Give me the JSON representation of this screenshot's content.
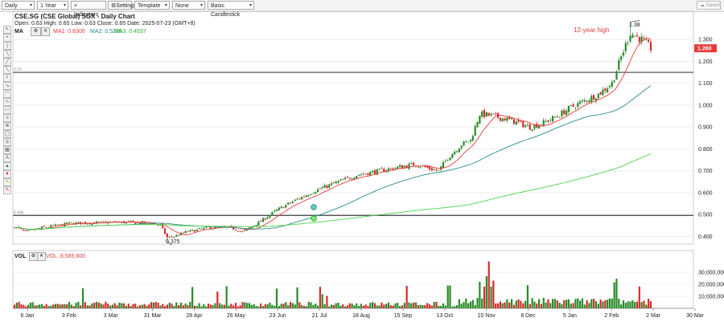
{
  "toolbar": {
    "period": "Daily",
    "range": "1 Year",
    "indicators": "Indicators",
    "settings": "Settings",
    "template": "Template",
    "overlay": "None",
    "style": "Basic Candlestick",
    "saved": "Saved"
  },
  "header": {
    "title": "CSE.SG (CSE Global) SGX - Daily Chart",
    "ohlc": "Open: 0.63   High: 0.65   Low: 0.63   Close: 0.65   Date: 2025-07-23 (GMT+8)",
    "ma_label": "MA",
    "ma1": "MA1: 0.6300",
    "ma2": "MA2: 0.5230",
    "ma3": "MA3: 0.4537",
    "vol_label": "VOL",
    "vol_value": "VOL: 8,585,600"
  },
  "colors": {
    "up": "#2a8a2a",
    "down": "#d62b2b",
    "ma1": "#e83a3a",
    "ma2": "#2a8a8a",
    "ma3": "#4ad64a"
  },
  "chart_data": {
    "type": "candlestick",
    "title": "CSE.SG (CSE Global) SGX - Daily Chart",
    "price_ticks": [
      "1.300",
      "1.200",
      "1.100",
      "1.000",
      "0.900",
      "0.800",
      "0.700",
      "0.600",
      "0.500",
      "0.400"
    ],
    "price_range": [
      0.365,
      1.4
    ],
    "last_price": "1.260",
    "hlines": [
      {
        "label": "1.15",
        "value": 1.15
      },
      {
        "label": "0.496",
        "value": 0.496
      }
    ],
    "annotations": {
      "high_text": "1.38",
      "low_text": "0.375",
      "twelve_year": "12-year high"
    },
    "volume_ticks": [
      "30,000,000",
      "20,000,000",
      "10,000,000"
    ],
    "volume_max": 40000000,
    "x_ticks": [
      "6 Jan",
      "3 Feb",
      "3 Mar",
      "31 Mar",
      "28 Apr",
      "26 May",
      "23 Jun",
      "21 Jul",
      "18 Aug",
      "15 Sep",
      "13 Oct",
      "10 Nov",
      "8 Dec",
      "5 Jan",
      "2 Feb",
      "2 Mar",
      "30 Mar"
    ],
    "close_anchors": [
      [
        0,
        0.445
      ],
      [
        5,
        0.42
      ],
      [
        12,
        0.44
      ],
      [
        25,
        0.46
      ],
      [
        45,
        0.465
      ],
      [
        60,
        0.462
      ],
      [
        64,
        0.45
      ],
      [
        67,
        0.395
      ],
      [
        70,
        0.4
      ],
      [
        75,
        0.42
      ],
      [
        85,
        0.44
      ],
      [
        95,
        0.44
      ],
      [
        100,
        0.42
      ],
      [
        108,
        0.47
      ],
      [
        115,
        0.52
      ],
      [
        122,
        0.56
      ],
      [
        132,
        0.61
      ],
      [
        142,
        0.65
      ],
      [
        150,
        0.68
      ],
      [
        160,
        0.7
      ],
      [
        170,
        0.72
      ],
      [
        176,
        0.73
      ],
      [
        182,
        0.71
      ],
      [
        186,
        0.7
      ],
      [
        190,
        0.76
      ],
      [
        196,
        0.82
      ],
      [
        200,
        0.84
      ],
      [
        204,
        0.96
      ],
      [
        210,
        0.95
      ],
      [
        218,
        0.93
      ],
      [
        226,
        0.9
      ],
      [
        232,
        0.92
      ],
      [
        238,
        0.95
      ],
      [
        244,
        0.99
      ],
      [
        250,
        1.02
      ],
      [
        256,
        1.05
      ],
      [
        262,
        1.1
      ],
      [
        266,
        1.22
      ],
      [
        270,
        1.33
      ],
      [
        275,
        1.3
      ],
      [
        279,
        1.26
      ]
    ],
    "ma1": "MA1 0.6300",
    "ma2": "MA2 0.5230",
    "ma3": "MA3 0.4537"
  }
}
